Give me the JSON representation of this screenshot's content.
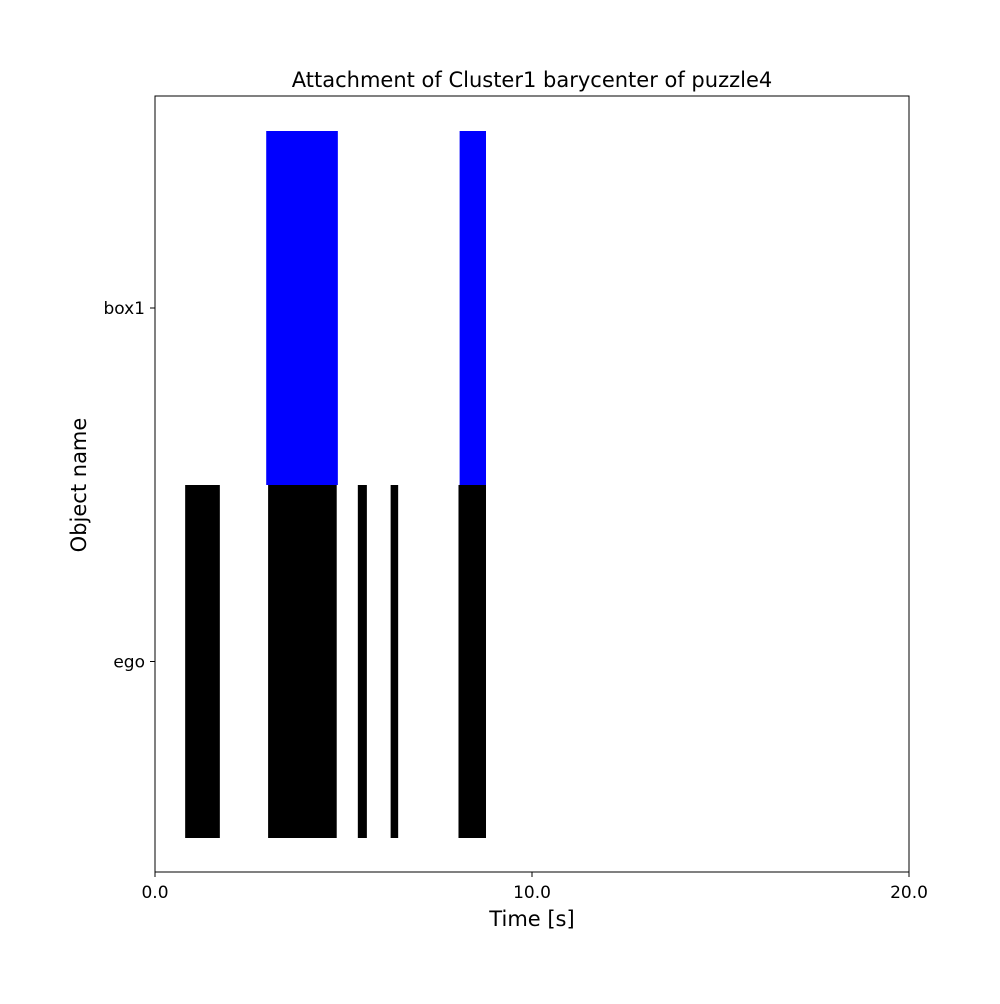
{
  "chart_data": {
    "type": "timeline",
    "title": "Attachment of Cluster1 barycenter of puzzle4",
    "xlabel": "Time [s]",
    "ylabel": "Object name",
    "xlim": [
      0.0,
      20.0
    ],
    "xticks": [
      0.0,
      10.0,
      20.0
    ],
    "xtick_labels": [
      "0.0",
      "10.0",
      "20.0"
    ],
    "categories": [
      "ego",
      "box1"
    ],
    "grid": false,
    "series": [
      {
        "category": "box1",
        "color": "#0000ff",
        "intervals": [
          [
            2.95,
            4.85
          ],
          [
            8.08,
            8.78
          ]
        ]
      },
      {
        "category": "ego",
        "color": "#000000",
        "intervals": [
          [
            0.8,
            1.72
          ],
          [
            3.0,
            4.82
          ],
          [
            5.38,
            5.62
          ],
          [
            6.25,
            6.45
          ],
          [
            8.05,
            8.78
          ]
        ]
      }
    ]
  }
}
